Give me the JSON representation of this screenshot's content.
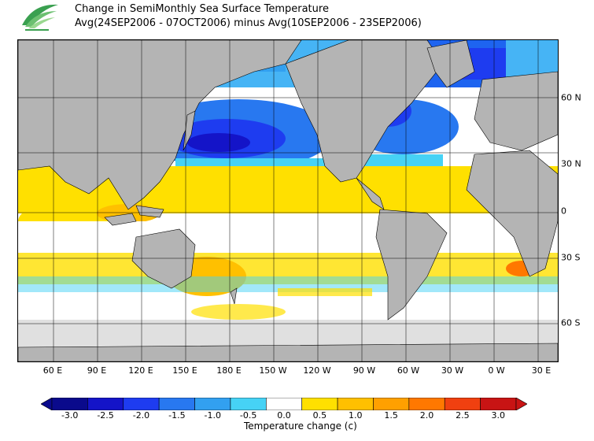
{
  "header": {
    "title": "Change in SemiMonthly Sea Surface Temperature",
    "subtitle": "Avg(24SEP2006 - 07OCT2006) minus Avg(10SEP2006 - 23SEP2006)"
  },
  "map": {
    "lon_labels": [
      "60 E",
      "90 E",
      "120 E",
      "150 E",
      "180 E",
      "150 W",
      "120 W",
      "90 W",
      "60 W",
      "30 W",
      "0 W",
      "30 E"
    ],
    "lat_labels": [
      "60 N",
      "30 N",
      "0",
      "30 S",
      "60 S"
    ]
  },
  "colorbar": {
    "title": "Temperature change  (c)",
    "labels": [
      "-3.0",
      "-2.5",
      "-2.0",
      "-1.5",
      "-1.0",
      "-0.5",
      "0.0",
      "0.5",
      "1.0",
      "1.5",
      "2.0",
      "2.5",
      "3.0"
    ],
    "colors": [
      "#0a0a8c",
      "#1414c8",
      "#1e3cf0",
      "#2878f0",
      "#32a0f0",
      "#46d2f5",
      "#ffffff",
      "#ffe000",
      "#ffc000",
      "#ffa000",
      "#ff7800",
      "#f04010",
      "#c81414"
    ],
    "land_color": "#b4b4b4",
    "ice_color": "#e0e0e0"
  }
}
